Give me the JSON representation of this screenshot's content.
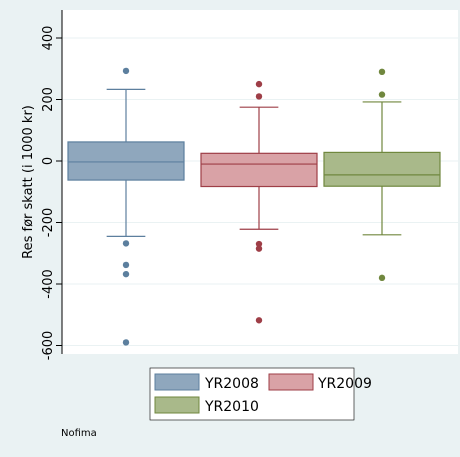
{
  "chart_data": {
    "type": "box",
    "ylabel": "Res før skatt (i 1000 kr)",
    "yticks": [
      400,
      200,
      0,
      -200,
      -400,
      -600
    ],
    "ylim": [
      -650,
      430
    ],
    "grid": "horizontal",
    "legend_position": "bottom",
    "series": [
      {
        "name": "YR2008",
        "color": "#5c7f9e",
        "fill": "#8fa7bd",
        "q1": -62,
        "median": -3,
        "q3": 62,
        "whisker_low": -245,
        "whisker_high": 233,
        "outliers": [
          293,
          -268,
          -338,
          -368,
          -590
        ]
      },
      {
        "name": "YR2009",
        "color": "#9e3e47",
        "fill": "#d9a2a6",
        "q1": -83,
        "median": -10,
        "q3": 25,
        "whisker_low": -222,
        "whisker_high": 175,
        "outliers": [
          250,
          210,
          -270,
          -285,
          -518
        ]
      },
      {
        "name": "YR2010",
        "color": "#70873e",
        "fill": "#a9b98a",
        "q1": -82,
        "median": -45,
        "q3": 28,
        "whisker_low": -240,
        "whisker_high": 192,
        "outliers": [
          290,
          216,
          -380
        ]
      }
    ],
    "note": "Nofima"
  }
}
